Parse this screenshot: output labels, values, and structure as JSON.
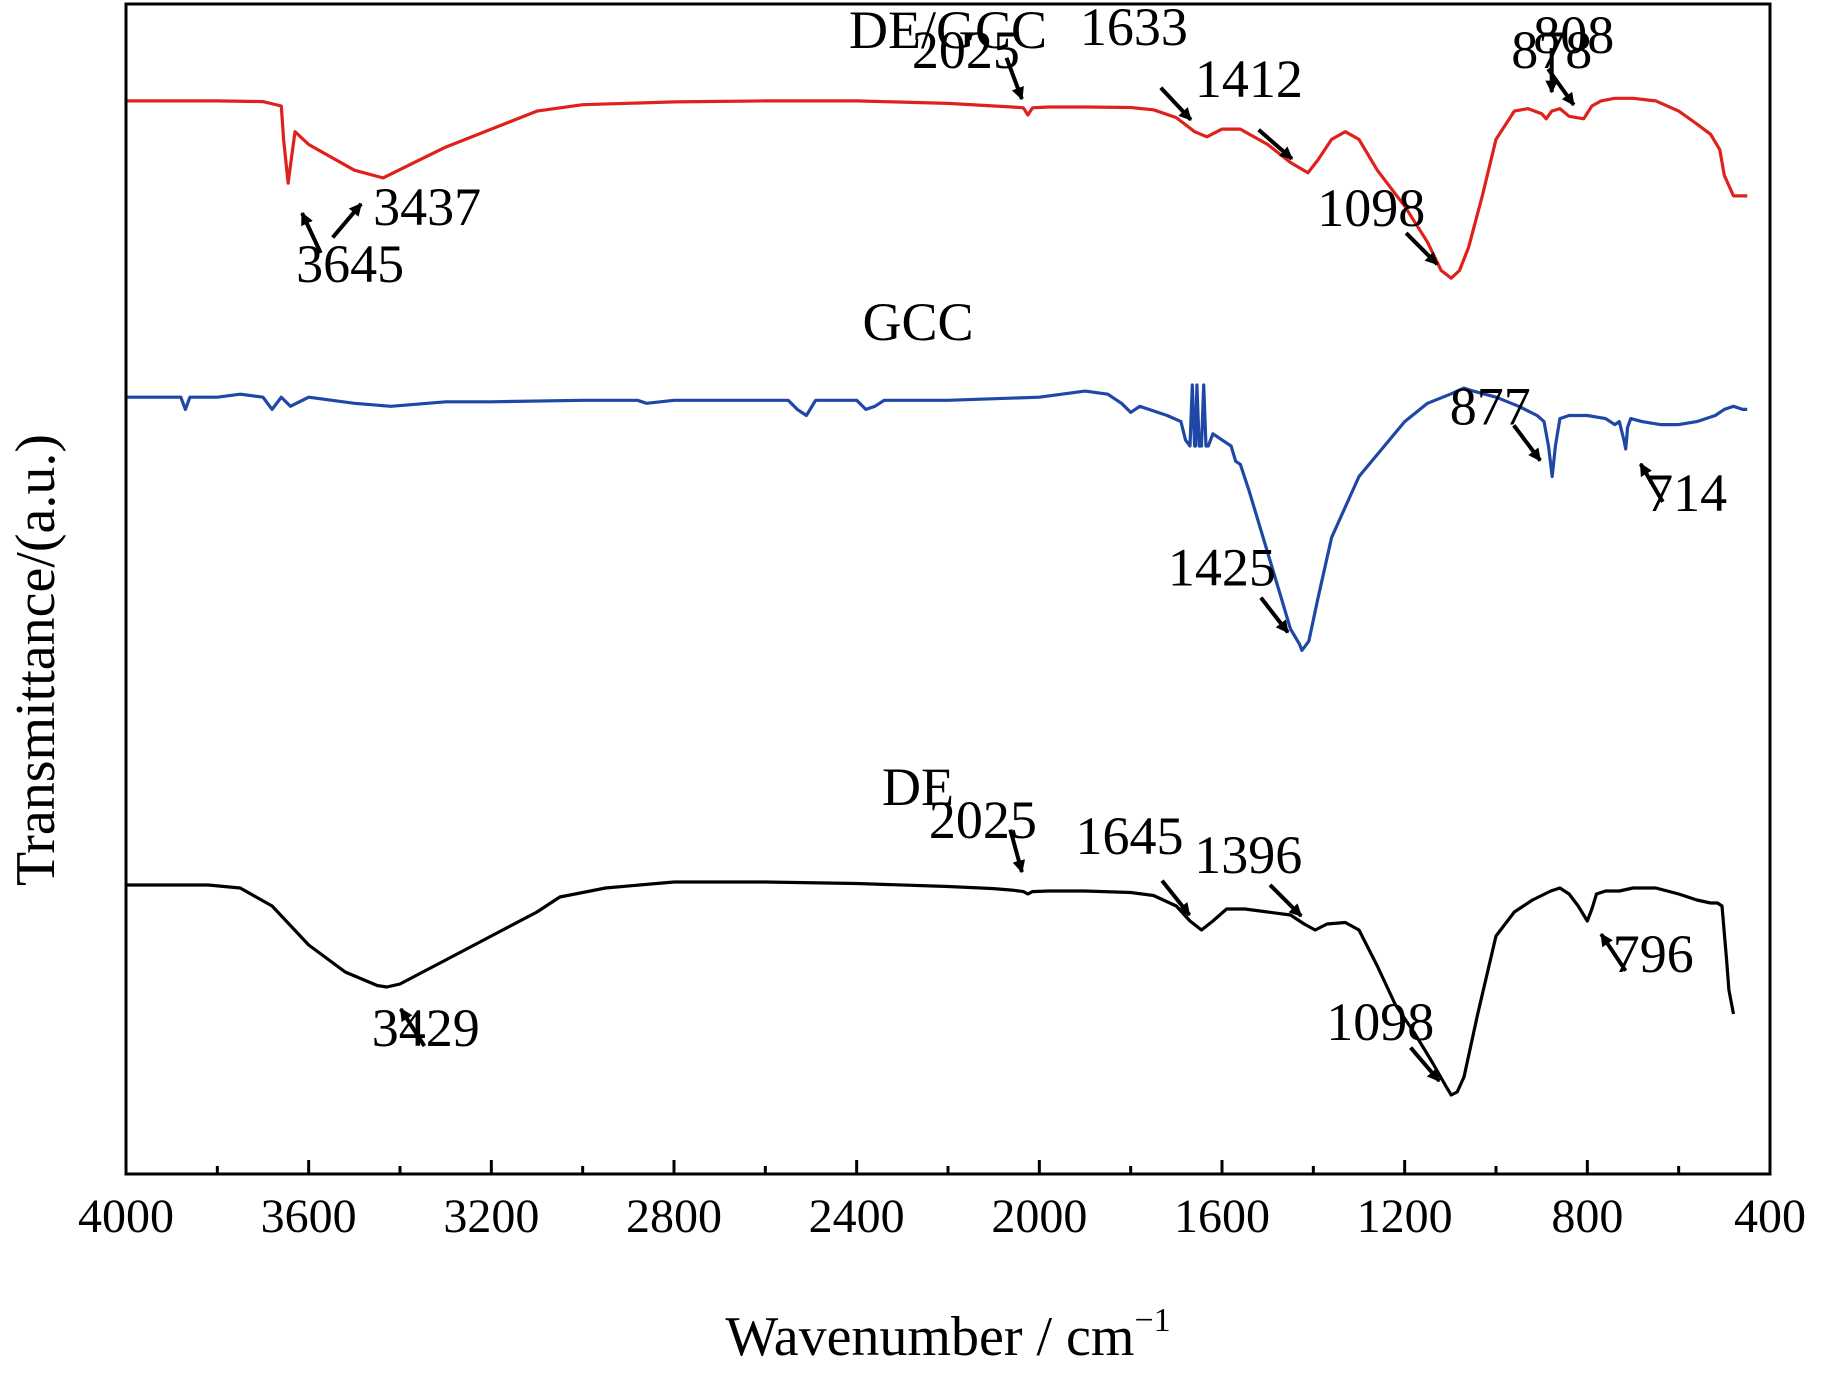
{
  "chart_data": {
    "type": "line",
    "title": "",
    "xlabel": "Wavenumber / cm",
    "xlabel_sup": "−1",
    "ylabel": "Transmittance/(a.u.)",
    "xlim": [
      4000,
      400
    ],
    "x_reversed": true,
    "x_ticks": [
      4000,
      3600,
      3200,
      2800,
      2400,
      2000,
      1600,
      1200,
      800,
      400
    ],
    "y_ticks_shown": false,
    "grid": false,
    "legend": "none",
    "series": [
      {
        "name": "DE/GCC",
        "color": "#e0201b",
        "x": [
          4000,
          3800,
          3700,
          3660,
          3655,
          3645,
          3630,
          3600,
          3500,
          3437,
          3380,
          3300,
          3200,
          3100,
          3000,
          2800,
          2600,
          2400,
          2200,
          2060,
          2035,
          2025,
          2015,
          1980,
          1900,
          1800,
          1750,
          1700,
          1660,
          1633,
          1600,
          1560,
          1500,
          1450,
          1412,
          1390,
          1360,
          1330,
          1300,
          1260,
          1200,
          1150,
          1120,
          1098,
          1080,
          1060,
          1030,
          1000,
          960,
          930,
          900,
          890,
          878,
          860,
          840,
          808,
          790,
          770,
          740,
          700,
          650,
          600,
          560,
          530,
          510,
          500,
          480,
          470,
          460,
          450
        ],
        "y": [
          95.0,
          95.0,
          94.7,
          93.0,
          80.0,
          63.0,
          83.0,
          78.0,
          68.0,
          65.0,
          70.0,
          77.0,
          84.0,
          91.0,
          93.5,
          94.6,
          95.0,
          95.0,
          94.0,
          92.6,
          92.3,
          89.5,
          92.3,
          92.6,
          92.6,
          92.4,
          91.5,
          88.5,
          83.0,
          81.0,
          84.0,
          84.0,
          78.0,
          71.0,
          67.0,
          72.0,
          80.0,
          83.0,
          80.0,
          68.0,
          54.0,
          40.0,
          29.0,
          26.0,
          29.0,
          38.0,
          58.0,
          80.0,
          91.0,
          92.0,
          90.0,
          88.0,
          91.0,
          92.0,
          89.0,
          88.0,
          93.0,
          95.0,
          96.0,
          96.0,
          95.0,
          91.0,
          86.0,
          82.0,
          76.0,
          66.0,
          58.0,
          58.0,
          58.0,
          58.0
        ]
      },
      {
        "name": "GCC",
        "color": "#1f48a6",
        "x": [
          4000,
          3950,
          3880,
          3870,
          3860,
          3800,
          3750,
          3700,
          3680,
          3660,
          3640,
          3600,
          3500,
          3420,
          3300,
          3200,
          3000,
          2880,
          2860,
          2800,
          2700,
          2600,
          2550,
          2530,
          2510,
          2490,
          2450,
          2400,
          2380,
          2360,
          2340,
          2200,
          2000,
          1900,
          1850,
          1820,
          1800,
          1780,
          1760,
          1720,
          1690,
          1680,
          1670,
          1665,
          1660,
          1658,
          1655,
          1650,
          1645,
          1640,
          1635,
          1630,
          1620,
          1600,
          1580,
          1570,
          1560,
          1540,
          1500,
          1470,
          1450,
          1430,
          1425,
          1410,
          1390,
          1360,
          1300,
          1200,
          1150,
          1100,
          1070,
          1050,
          1000,
          950,
          910,
          895,
          885,
          877,
          870,
          860,
          840,
          800,
          760,
          740,
          730,
          720,
          716,
          714,
          712,
          705,
          680,
          640,
          600,
          560,
          520,
          500,
          480,
          460,
          450
        ],
        "y": [
          96.0,
          96.0,
          96.0,
          92.0,
          96.0,
          96.0,
          97.0,
          96.0,
          92.0,
          96.0,
          93.0,
          96.0,
          94.0,
          93.0,
          94.5,
          94.5,
          95.0,
          95.0,
          94.0,
          95.0,
          95.0,
          95.0,
          95.0,
          92.0,
          90.0,
          95.0,
          95.0,
          95.0,
          92.0,
          93.0,
          95.0,
          95.0,
          96.0,
          98.0,
          97.0,
          94.0,
          91.0,
          93.0,
          92.0,
          90.0,
          88.0,
          82.0,
          80.0,
          100.0,
          80.0,
          80.0,
          100.0,
          80.0,
          80.0,
          100.0,
          80.0,
          80.0,
          84.0,
          82.0,
          80.0,
          75.0,
          74.0,
          65.0,
          45.0,
          30.0,
          20.0,
          15.0,
          13.0,
          16.0,
          30.0,
          50.0,
          70.0,
          88.0,
          94.0,
          97.0,
          99.0,
          98.0,
          96.0,
          93.0,
          90.0,
          88.0,
          80.0,
          70.0,
          80.0,
          89.0,
          90.0,
          90.0,
          89.0,
          87.0,
          88.0,
          82.0,
          79.0,
          82.0,
          86.0,
          89.0,
          88.0,
          87.0,
          87.0,
          88.0,
          90.0,
          92.0,
          93.0,
          92.0,
          92.0
        ]
      },
      {
        "name": "DE",
        "color": "#000000",
        "x": [
          4000,
          3900,
          3820,
          3750,
          3680,
          3600,
          3520,
          3450,
          3429,
          3400,
          3350,
          3300,
          3200,
          3100,
          3050,
          2950,
          2800,
          2700,
          2600,
          2400,
          2200,
          2100,
          2060,
          2035,
          2025,
          2015,
          1980,
          1900,
          1800,
          1750,
          1700,
          1670,
          1645,
          1620,
          1590,
          1550,
          1500,
          1450,
          1420,
          1396,
          1370,
          1330,
          1300,
          1260,
          1220,
          1180,
          1140,
          1110,
          1098,
          1085,
          1070,
          1040,
          1000,
          960,
          920,
          880,
          860,
          840,
          820,
          800,
          790,
          780,
          760,
          730,
          700,
          650,
          600,
          560,
          530,
          515,
          505,
          495,
          490,
          480
        ],
        "y": [
          95.0,
          95.0,
          95.0,
          94.0,
          88.0,
          75.0,
          66.0,
          61.5,
          61.0,
          62.0,
          66.0,
          70.0,
          78.0,
          86.0,
          91.0,
          94.0,
          96.0,
          96.0,
          96.0,
          95.5,
          94.5,
          93.8,
          93.3,
          92.8,
          92.0,
          92.8,
          93.0,
          93.0,
          92.5,
          91.5,
          88.0,
          83.0,
          80.0,
          83.0,
          87.0,
          87.0,
          86.0,
          85.0,
          82.0,
          80.0,
          82.0,
          82.5,
          80.0,
          68.0,
          55.0,
          46.0,
          36.0,
          28.0,
          25.0,
          26.0,
          31.0,
          52.0,
          78.0,
          86.0,
          90.0,
          93.0,
          94.0,
          92.0,
          88.0,
          83.0,
          87.0,
          92.0,
          93.0,
          93.0,
          94.0,
          94.0,
          92.0,
          90.0,
          89.0,
          89.0,
          88.0,
          70.0,
          60.0,
          52.0
        ]
      }
    ],
    "series_labels": [
      {
        "text": "DE/GCC",
        "x": 2245
      },
      {
        "text": "GCC",
        "x": 2245
      },
      {
        "text": "DE",
        "x": 2245
      }
    ],
    "annotations": [
      {
        "series": 0,
        "x": 3645,
        "text": "3645"
      },
      {
        "series": 0,
        "x": 3437,
        "text": "3437"
      },
      {
        "series": 0,
        "x": 2025,
        "text": "2025"
      },
      {
        "series": 0,
        "x": 1633,
        "text": "1633"
      },
      {
        "series": 0,
        "x": 1412,
        "text": "1412"
      },
      {
        "series": 0,
        "x": 1098,
        "text": "1098"
      },
      {
        "series": 0,
        "x": 878,
        "text": "878"
      },
      {
        "series": 0,
        "x": 808,
        "text": "808"
      },
      {
        "series": 1,
        "x": 1425,
        "text": "1425"
      },
      {
        "series": 1,
        "x": 877,
        "text": "877"
      },
      {
        "series": 1,
        "x": 714,
        "text": "714"
      },
      {
        "series": 2,
        "x": 3429,
        "text": "3429"
      },
      {
        "series": 2,
        "x": 2025,
        "text": "2025"
      },
      {
        "series": 2,
        "x": 1645,
        "text": "1645"
      },
      {
        "series": 2,
        "x": 1396,
        "text": "1396"
      },
      {
        "series": 2,
        "x": 1098,
        "text": "1098"
      },
      {
        "series": 2,
        "x": 796,
        "text": "796"
      }
    ]
  }
}
